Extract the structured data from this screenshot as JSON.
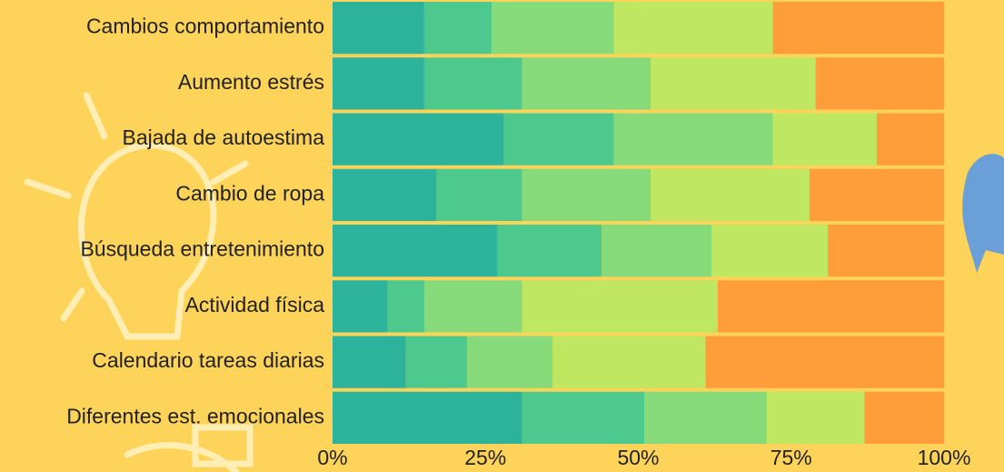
{
  "chart_data": {
    "type": "bar",
    "orientation": "horizontal",
    "stacked": true,
    "categories": [
      "Cambios comportamiento",
      "Aumento estrés",
      "Bajada de autoestima",
      "Cambio de ropa",
      "Búsqueda entretenimiento",
      "Actividad física",
      "Calendario tareas diarias",
      "Diferentes est. emocionales"
    ],
    "series": [
      {
        "color": "#2db39b",
        "values": [
          15,
          15,
          28,
          17,
          27,
          9,
          12,
          31
        ]
      },
      {
        "color": "#4ec98e",
        "values": [
          11,
          16,
          18,
          14,
          17,
          6,
          10,
          20
        ]
      },
      {
        "color": "#86da7a",
        "values": [
          20,
          21,
          26,
          21,
          18,
          16,
          14,
          20
        ]
      },
      {
        "color": "#bfe761",
        "values": [
          26,
          27,
          17,
          26,
          19,
          32,
          25,
          16
        ]
      },
      {
        "color": "#ff9d3b",
        "values": [
          28,
          21,
          11,
          22,
          19,
          37,
          39,
          13
        ]
      }
    ],
    "xlim": [
      0,
      100
    ],
    "xticks": [
      {
        "value": 0,
        "label": "0%"
      },
      {
        "value": 25,
        "label": "25%"
      },
      {
        "value": 50,
        "label": "50%"
      },
      {
        "value": 75,
        "label": "75%"
      },
      {
        "value": 100,
        "label": "100%"
      }
    ],
    "grid": false
  }
}
